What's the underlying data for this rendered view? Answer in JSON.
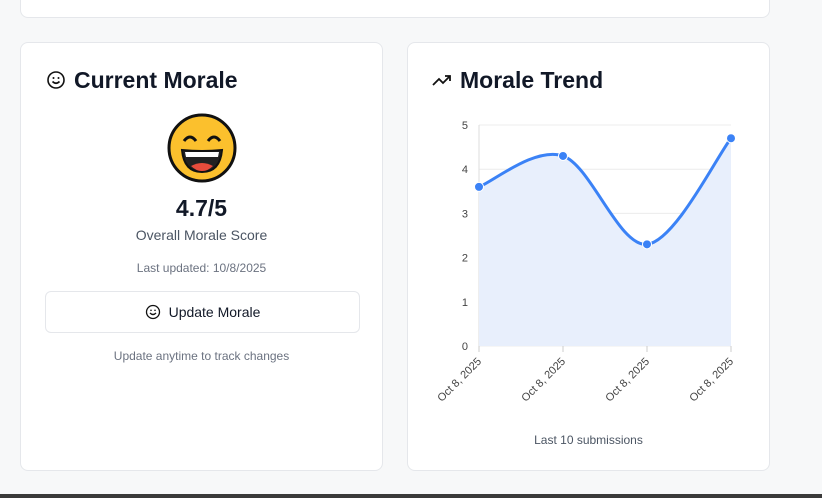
{
  "morale": {
    "title": "Current Morale",
    "score": "4.7/5",
    "score_caption": "Overall Morale Score",
    "last_updated": "Last updated: 10/8/2025",
    "button": "Update Morale",
    "hint": "Update anytime to track changes"
  },
  "chart_data": {
    "type": "line",
    "title": "Morale Trend",
    "caption": "Last 10 submissions",
    "categories": [
      "Oct 8, 2025",
      "Oct 8, 2025",
      "Oct 8, 2025",
      "Oct 8, 2025"
    ],
    "series": [
      {
        "name": "Morale",
        "color": "#3b82f6",
        "values": [
          3.6,
          4.3,
          2.3,
          4.7
        ]
      }
    ],
    "area_color": "#e8effc",
    "ylim": [
      0,
      5
    ],
    "yticks": [
      0,
      1,
      2,
      3,
      4,
      5
    ],
    "grid": true
  }
}
